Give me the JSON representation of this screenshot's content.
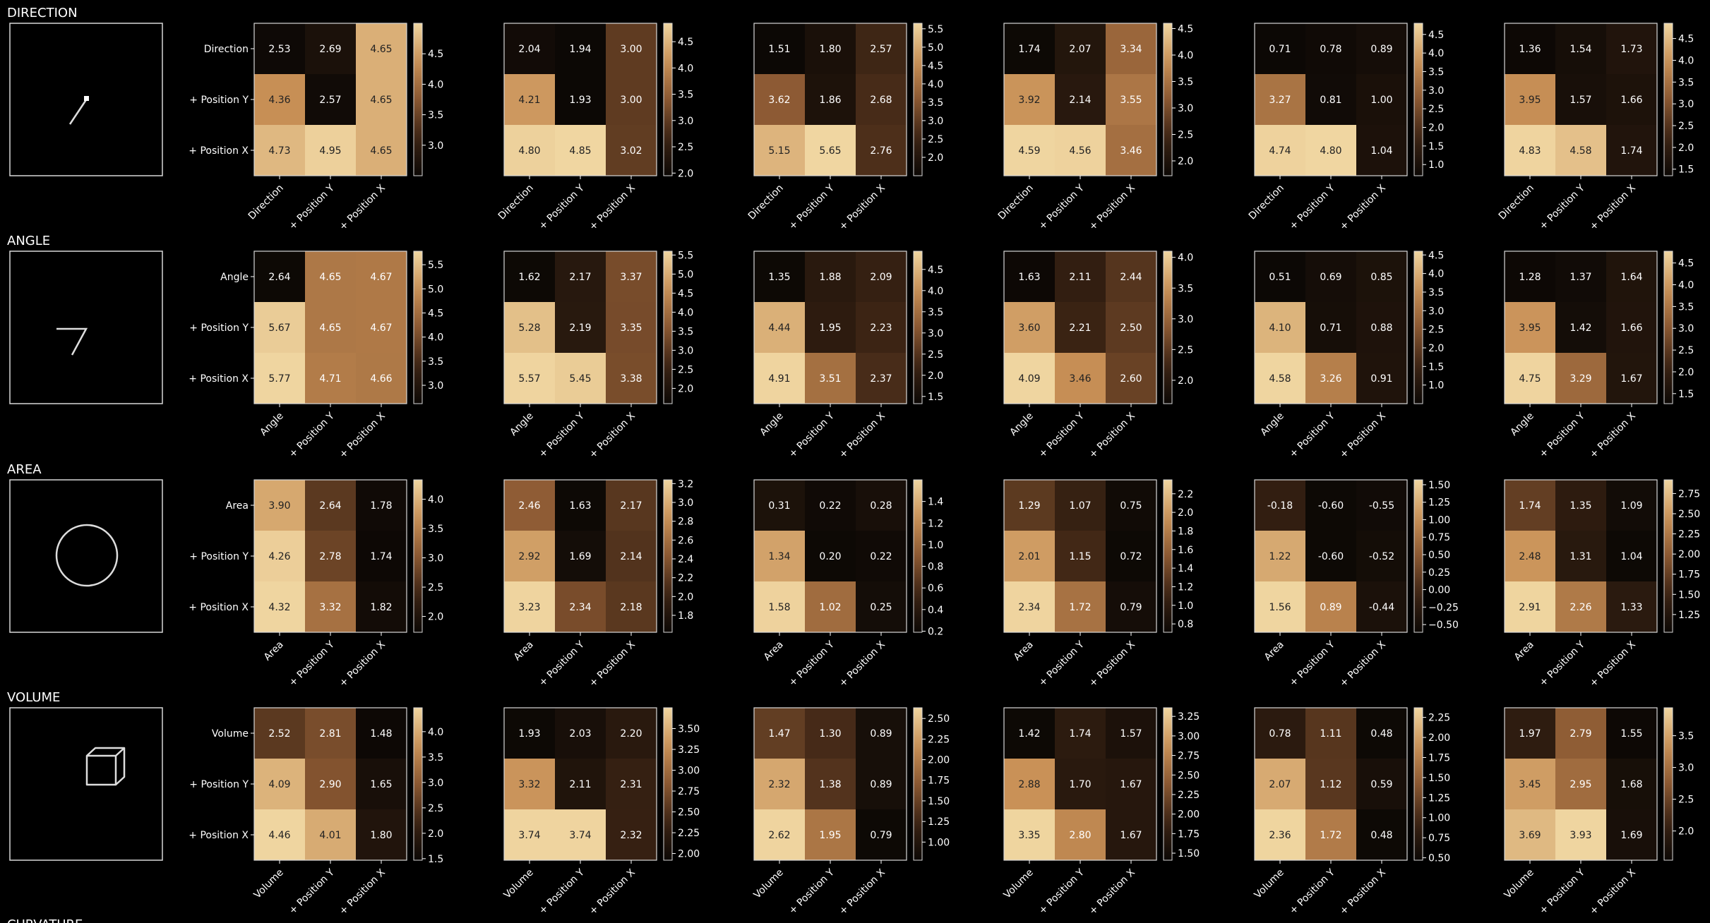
{
  "figure": {
    "background": "#000000",
    "text_color": "#ffffff"
  },
  "colormap": {
    "low": "#0c0805",
    "high": "#f0d6a1"
  },
  "rows": [
    {
      "title": "DIRECTION",
      "icon": "line-segment-icon"
    },
    {
      "title": "ANGLE",
      "icon": "angle-icon"
    },
    {
      "title": "AREA",
      "icon": "circle-icon"
    },
    {
      "title": "VOLUME",
      "icon": "cube-icon"
    },
    {
      "title": "CURVATURE",
      "icon": ""
    }
  ],
  "chart_data": [
    {
      "type": "heatmap",
      "row_title": "DIRECTION",
      "panel": 1,
      "rows": [
        "Direction",
        "+ Position Y",
        "+ Position X"
      ],
      "columns": [
        "Direction",
        "+ Position Y",
        "+ Position X"
      ],
      "values": [
        [
          2.53,
          2.69,
          4.65
        ],
        [
          4.36,
          2.57,
          4.65
        ],
        [
          4.73,
          4.95,
          4.65
        ]
      ],
      "colorbar": {
        "range": [
          2.5,
          5.0
        ],
        "ticks": [
          "3.0",
          "3.5",
          "4.0",
          "4.5"
        ]
      }
    },
    {
      "type": "heatmap",
      "row_title": "DIRECTION",
      "panel": 2,
      "rows": [
        "Direction",
        "+ Position Y",
        "+ Position X"
      ],
      "columns": [
        "Direction",
        "+ Position Y",
        "+ Position X"
      ],
      "values": [
        [
          2.04,
          1.94,
          3.0
        ],
        [
          4.21,
          1.93,
          3.0
        ],
        [
          4.8,
          4.85,
          3.02
        ]
      ],
      "colorbar": {
        "range": [
          1.95,
          4.85
        ],
        "ticks": [
          "2.0",
          "2.5",
          "3.0",
          "3.5",
          "4.0",
          "4.5"
        ]
      }
    },
    {
      "type": "heatmap",
      "row_title": "DIRECTION",
      "panel": 3,
      "rows": [
        "Direction",
        "+ Position Y",
        "+ Position X"
      ],
      "columns": [
        "Direction",
        "+ Position Y",
        "+ Position X"
      ],
      "values": [
        [
          1.51,
          1.8,
          2.57
        ],
        [
          3.62,
          1.86,
          2.68
        ],
        [
          5.15,
          5.65,
          2.76
        ]
      ],
      "colorbar": {
        "range": [
          1.5,
          5.65
        ],
        "ticks": [
          "2.0",
          "2.5",
          "3.0",
          "3.5",
          "4.0",
          "4.5",
          "5.0",
          "5.5"
        ]
      }
    },
    {
      "type": "heatmap",
      "row_title": "DIRECTION",
      "panel": 4,
      "rows": [
        "Direction",
        "+ Position Y",
        "+ Position X"
      ],
      "columns": [
        "Direction",
        "+ Position Y",
        "+ Position X"
      ],
      "values": [
        [
          1.74,
          2.07,
          3.34
        ],
        [
          3.92,
          2.14,
          3.55
        ],
        [
          4.59,
          4.56,
          3.46
        ]
      ],
      "colorbar": {
        "range": [
          1.72,
          4.6
        ],
        "ticks": [
          "2.0",
          "2.5",
          "3.0",
          "3.5",
          "4.0",
          "4.5"
        ]
      }
    },
    {
      "type": "heatmap",
      "row_title": "DIRECTION",
      "panel": 5,
      "rows": [
        "Direction",
        "+ Position Y",
        "+ Position X"
      ],
      "columns": [
        "Direction",
        "+ Position Y",
        "+ Position X"
      ],
      "values": [
        [
          0.71,
          0.78,
          0.89
        ],
        [
          3.27,
          0.81,
          1.0
        ],
        [
          4.74,
          4.8,
          1.04
        ]
      ],
      "colorbar": {
        "range": [
          0.7,
          4.8
        ],
        "ticks": [
          "1.0",
          "1.5",
          "2.0",
          "2.5",
          "3.0",
          "3.5",
          "4.0",
          "4.5"
        ]
      }
    },
    {
      "type": "heatmap",
      "row_title": "DIRECTION",
      "panel": 6,
      "rows": [
        "Direction",
        "+ Position Y",
        "+ Position X"
      ],
      "columns": [
        "Direction",
        "+ Position Y",
        "+ Position X"
      ],
      "values": [
        [
          1.36,
          1.54,
          1.73
        ],
        [
          3.95,
          1.57,
          1.66
        ],
        [
          4.83,
          4.58,
          1.74
        ]
      ],
      "colorbar": {
        "range": [
          1.35,
          4.85
        ],
        "ticks": [
          "1.5",
          "2.0",
          "2.5",
          "3.0",
          "3.5",
          "4.0",
          "4.5"
        ]
      }
    },
    {
      "type": "heatmap",
      "row_title": "ANGLE",
      "panel": 1,
      "rows": [
        "Angle",
        "+ Position Y",
        "+ Position X"
      ],
      "columns": [
        "Angle",
        "+ Position Y",
        "+ Position X"
      ],
      "values": [
        [
          2.64,
          4.65,
          4.67
        ],
        [
          5.67,
          4.65,
          4.67
        ],
        [
          5.77,
          4.71,
          4.66
        ]
      ],
      "colorbar": {
        "range": [
          2.62,
          5.78
        ],
        "ticks": [
          "3.0",
          "3.5",
          "4.0",
          "4.5",
          "5.0",
          "5.5"
        ]
      }
    },
    {
      "type": "heatmap",
      "row_title": "ANGLE",
      "panel": 2,
      "rows": [
        "Angle",
        "+ Position Y",
        "+ Position X"
      ],
      "columns": [
        "Angle",
        "+ Position Y",
        "+ Position X"
      ],
      "values": [
        [
          1.62,
          2.17,
          3.37
        ],
        [
          5.28,
          2.19,
          3.35
        ],
        [
          5.57,
          5.45,
          3.38
        ]
      ],
      "colorbar": {
        "range": [
          1.6,
          5.6
        ],
        "ticks": [
          "2.0",
          "2.5",
          "3.0",
          "3.5",
          "4.0",
          "4.5",
          "5.0",
          "5.5"
        ]
      }
    },
    {
      "type": "heatmap",
      "row_title": "ANGLE",
      "panel": 3,
      "rows": [
        "Angle",
        "+ Position Y",
        "+ Position X"
      ],
      "columns": [
        "Angle",
        "+ Position Y",
        "+ Position X"
      ],
      "values": [
        [
          1.35,
          1.88,
          2.09
        ],
        [
          4.44,
          1.95,
          2.23
        ],
        [
          4.91,
          3.51,
          2.37
        ]
      ],
      "colorbar": {
        "range": [
          1.33,
          4.93
        ],
        "ticks": [
          "1.5",
          "2.0",
          "2.5",
          "3.0",
          "3.5",
          "4.0",
          "4.5"
        ]
      }
    },
    {
      "type": "heatmap",
      "row_title": "ANGLE",
      "panel": 4,
      "rows": [
        "Angle",
        "+ Position Y",
        "+ Position X"
      ],
      "columns": [
        "Angle",
        "+ Position Y",
        "+ Position X"
      ],
      "values": [
        [
          1.63,
          2.11,
          2.44
        ],
        [
          3.6,
          2.21,
          2.5
        ],
        [
          4.09,
          3.46,
          2.6
        ]
      ],
      "colorbar": {
        "range": [
          1.62,
          4.1
        ],
        "ticks": [
          "2.0",
          "2.5",
          "3.0",
          "3.5",
          "4.0"
        ]
      }
    },
    {
      "type": "heatmap",
      "row_title": "ANGLE",
      "panel": 5,
      "rows": [
        "Angle",
        "+ Position Y",
        "+ Position X"
      ],
      "columns": [
        "Angle",
        "+ Position Y",
        "+ Position X"
      ],
      "values": [
        [
          0.51,
          0.69,
          0.85
        ],
        [
          4.1,
          0.71,
          0.88
        ],
        [
          4.58,
          3.26,
          0.91
        ]
      ],
      "colorbar": {
        "range": [
          0.5,
          4.6
        ],
        "ticks": [
          "1.0",
          "1.5",
          "2.0",
          "2.5",
          "3.0",
          "3.5",
          "4.0",
          "4.5"
        ]
      }
    },
    {
      "type": "heatmap",
      "row_title": "ANGLE",
      "panel": 6,
      "rows": [
        "Angle",
        "+ Position Y",
        "+ Position X"
      ],
      "columns": [
        "Angle",
        "+ Position Y",
        "+ Position X"
      ],
      "values": [
        [
          1.28,
          1.37,
          1.64
        ],
        [
          3.95,
          1.42,
          1.66
        ],
        [
          4.75,
          3.29,
          1.67
        ]
      ],
      "colorbar": {
        "range": [
          1.27,
          4.77
        ],
        "ticks": [
          "1.5",
          "2.0",
          "2.5",
          "3.0",
          "3.5",
          "4.0",
          "4.5"
        ]
      }
    },
    {
      "type": "heatmap",
      "row_title": "AREA",
      "panel": 1,
      "rows": [
        "Area",
        "+ Position Y",
        "+ Position X"
      ],
      "columns": [
        "Area",
        "+ Position Y",
        "+ Position X"
      ],
      "values": [
        [
          3.9,
          2.64,
          1.78
        ],
        [
          4.26,
          2.78,
          1.74
        ],
        [
          4.32,
          3.32,
          1.82
        ]
      ],
      "colorbar": {
        "range": [
          1.73,
          4.33
        ],
        "ticks": [
          "2.0",
          "2.5",
          "3.0",
          "3.5",
          "4.0"
        ]
      }
    },
    {
      "type": "heatmap",
      "row_title": "AREA",
      "panel": 2,
      "rows": [
        "Area",
        "+ Position Y",
        "+ Position X"
      ],
      "columns": [
        "Area",
        "+ Position Y",
        "+ Position X"
      ],
      "values": [
        [
          2.46,
          1.63,
          2.17
        ],
        [
          2.92,
          1.69,
          2.14
        ],
        [
          3.23,
          2.34,
          2.18
        ]
      ],
      "colorbar": {
        "range": [
          1.62,
          3.24
        ],
        "ticks": [
          "1.8",
          "2.0",
          "2.2",
          "2.4",
          "2.6",
          "2.8",
          "3.0",
          "3.2"
        ]
      }
    },
    {
      "type": "heatmap",
      "row_title": "AREA",
      "panel": 3,
      "rows": [
        "Area",
        "+ Position Y",
        "+ Position X"
      ],
      "columns": [
        "Area",
        "+ Position Y",
        "+ Position X"
      ],
      "values": [
        [
          0.31,
          0.22,
          0.28
        ],
        [
          1.34,
          0.2,
          0.22
        ],
        [
          1.58,
          1.02,
          0.25
        ]
      ],
      "colorbar": {
        "range": [
          0.19,
          1.6
        ],
        "ticks": [
          "0.2",
          "0.4",
          "0.6",
          "0.8",
          "1.0",
          "1.2",
          "1.4"
        ]
      }
    },
    {
      "type": "heatmap",
      "row_title": "AREA",
      "panel": 4,
      "rows": [
        "Area",
        "+ Position Y",
        "+ Position X"
      ],
      "columns": [
        "Area",
        "+ Position Y",
        "+ Position X"
      ],
      "values": [
        [
          1.29,
          1.07,
          0.75
        ],
        [
          2.01,
          1.15,
          0.72
        ],
        [
          2.34,
          1.72,
          0.79
        ]
      ],
      "colorbar": {
        "range": [
          0.71,
          2.35
        ],
        "ticks": [
          "0.8",
          "1.0",
          "1.2",
          "1.4",
          "1.6",
          "1.8",
          "2.0",
          "2.2"
        ]
      }
    },
    {
      "type": "heatmap",
      "row_title": "AREA",
      "panel": 5,
      "rows": [
        "Area",
        "+ Position Y",
        "+ Position X"
      ],
      "columns": [
        "Area",
        "+ Position Y",
        "+ Position X"
      ],
      "values": [
        [
          -0.18,
          -0.6,
          -0.55
        ],
        [
          1.22,
          -0.6,
          -0.52
        ],
        [
          1.56,
          0.89,
          -0.44
        ]
      ],
      "colorbar": {
        "range": [
          -0.61,
          1.57
        ],
        "ticks": [
          "−0.50",
          "−0.25",
          "0.00",
          "0.25",
          "0.50",
          "0.75",
          "1.00",
          "1.25",
          "1.50"
        ]
      }
    },
    {
      "type": "heatmap",
      "row_title": "AREA",
      "panel": 6,
      "rows": [
        "Area",
        "+ Position Y",
        "+ Position X"
      ],
      "columns": [
        "Area",
        "+ Position Y",
        "+ Position X"
      ],
      "values": [
        [
          1.74,
          1.35,
          1.09
        ],
        [
          2.48,
          1.31,
          1.04
        ],
        [
          2.91,
          2.26,
          1.33
        ]
      ],
      "colorbar": {
        "range": [
          1.03,
          2.92
        ],
        "ticks": [
          "1.25",
          "1.50",
          "1.75",
          "2.00",
          "2.25",
          "2.50",
          "2.75"
        ]
      }
    },
    {
      "type": "heatmap",
      "row_title": "VOLUME",
      "panel": 1,
      "rows": [
        "Volume",
        "+ Position Y",
        "+ Position X"
      ],
      "columns": [
        "Volume",
        "+ Position Y",
        "+ Position X"
      ],
      "values": [
        [
          2.52,
          2.81,
          1.48
        ],
        [
          4.09,
          2.9,
          1.65
        ],
        [
          4.46,
          4.01,
          1.8
        ]
      ],
      "colorbar": {
        "range": [
          1.47,
          4.47
        ],
        "ticks": [
          "1.5",
          "2.0",
          "2.5",
          "3.0",
          "3.5",
          "4.0"
        ]
      }
    },
    {
      "type": "heatmap",
      "row_title": "VOLUME",
      "panel": 2,
      "rows": [
        "Volume",
        "+ Position Y",
        "+ Position X"
      ],
      "columns": [
        "Volume",
        "+ Position Y",
        "+ Position X"
      ],
      "values": [
        [
          1.93,
          2.03,
          2.2
        ],
        [
          3.32,
          2.11,
          2.31
        ],
        [
          3.74,
          3.74,
          2.32
        ]
      ],
      "colorbar": {
        "range": [
          1.92,
          3.75
        ],
        "ticks": [
          "2.00",
          "2.25",
          "2.50",
          "2.75",
          "3.00",
          "3.25",
          "3.50"
        ]
      }
    },
    {
      "type": "heatmap",
      "row_title": "VOLUME",
      "panel": 3,
      "rows": [
        "Volume",
        "+ Position Y",
        "+ Position X"
      ],
      "columns": [
        "Volume",
        "+ Position Y",
        "+ Position X"
      ],
      "values": [
        [
          1.47,
          1.3,
          0.89
        ],
        [
          2.32,
          1.38,
          0.89
        ],
        [
          2.62,
          1.95,
          0.79
        ]
      ],
      "colorbar": {
        "range": [
          0.78,
          2.63
        ],
        "ticks": [
          "1.00",
          "1.25",
          "1.50",
          "1.75",
          "2.00",
          "2.25",
          "2.50"
        ]
      }
    },
    {
      "type": "heatmap",
      "row_title": "VOLUME",
      "panel": 4,
      "rows": [
        "Volume",
        "+ Position Y",
        "+ Position X"
      ],
      "columns": [
        "Volume",
        "+ Position Y",
        "+ Position X"
      ],
      "values": [
        [
          1.42,
          1.74,
          1.57
        ],
        [
          2.88,
          1.7,
          1.67
        ],
        [
          3.35,
          2.8,
          1.67
        ]
      ],
      "colorbar": {
        "range": [
          1.41,
          3.36
        ],
        "ticks": [
          "1.50",
          "1.75",
          "2.00",
          "2.25",
          "2.50",
          "2.75",
          "3.00",
          "3.25"
        ]
      }
    },
    {
      "type": "heatmap",
      "row_title": "VOLUME",
      "panel": 5,
      "rows": [
        "Volume",
        "+ Position Y",
        "+ Position X"
      ],
      "columns": [
        "Volume",
        "+ Position Y",
        "+ Position X"
      ],
      "values": [
        [
          0.78,
          1.11,
          0.48
        ],
        [
          2.07,
          1.12,
          0.59
        ],
        [
          2.36,
          1.72,
          0.48
        ]
      ],
      "colorbar": {
        "range": [
          0.47,
          2.37
        ],
        "ticks": [
          "0.50",
          "0.75",
          "1.00",
          "1.25",
          "1.50",
          "1.75",
          "2.00",
          "2.25"
        ]
      }
    },
    {
      "type": "heatmap",
      "row_title": "VOLUME",
      "panel": 6,
      "rows": [
        "Volume",
        "+ Position Y",
        "+ Position X"
      ],
      "columns": [
        "Volume",
        "+ Position Y",
        "+ Position X"
      ],
      "values": [
        [
          1.97,
          2.79,
          1.55
        ],
        [
          3.45,
          2.95,
          1.68
        ],
        [
          3.69,
          3.93,
          1.69
        ]
      ],
      "colorbar": {
        "range": [
          1.54,
          3.94
        ],
        "ticks": [
          "2.0",
          "2.5",
          "3.0",
          "3.5"
        ]
      }
    }
  ]
}
